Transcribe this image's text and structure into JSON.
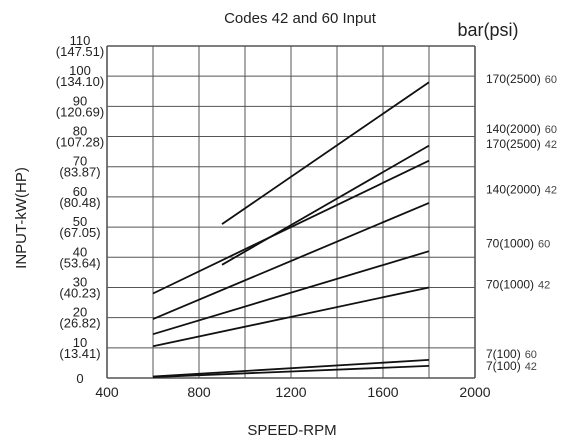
{
  "chart_data": {
    "type": "line",
    "title": "Codes 42 and 60 Input",
    "legend_title": "bar(psi)",
    "xlabel": "SPEED-RPM",
    "ylabel": "INPUT-kW(HP)",
    "xlim": [
      400,
      2000
    ],
    "ylim": [
      0,
      110
    ],
    "x_ticks": [
      "400",
      "800",
      "1200",
      "1600",
      "2000"
    ],
    "y_ticks": [
      {
        "value": 0,
        "kw": "0",
        "hp": ""
      },
      {
        "value": 10,
        "kw": "10",
        "hp": "(13.41)"
      },
      {
        "value": 20,
        "kw": "20",
        "hp": "(26.82)"
      },
      {
        "value": 30,
        "kw": "30",
        "hp": "(40.23)"
      },
      {
        "value": 40,
        "kw": "40",
        "hp": "(53.64)"
      },
      {
        "value": 50,
        "kw": "50",
        "hp": "(67.05)"
      },
      {
        "value": 60,
        "kw": "60",
        "hp": "(80.48)"
      },
      {
        "value": 70,
        "kw": "70",
        "hp": "(83.87)"
      },
      {
        "value": 80,
        "kw": "80",
        "hp": "(107.28)"
      },
      {
        "value": 90,
        "kw": "90",
        "hp": "(120.69)"
      },
      {
        "value": 100,
        "kw": "100",
        "hp": "(134.10)"
      },
      {
        "value": 110,
        "kw": "110",
        "hp": "(147.51)"
      }
    ],
    "grid": true,
    "series": [
      {
        "name": "170(2500) 60",
        "pressure": "170(2500)",
        "code": "60",
        "x": [
          900,
          1800
        ],
        "y": [
          51,
          98
        ]
      },
      {
        "name": "140(2000) 60",
        "pressure": "140(2000)",
        "code": "60",
        "x": [
          900,
          1800
        ],
        "y": [
          37.5,
          77
        ]
      },
      {
        "name": "170(2500) 42",
        "pressure": "170(2500)",
        "code": "42",
        "x": [
          600,
          1800
        ],
        "y": [
          28,
          72
        ]
      },
      {
        "name": "140(2000) 42",
        "pressure": "140(2000)",
        "code": "42",
        "x": [
          600,
          1800
        ],
        "y": [
          19.5,
          58
        ]
      },
      {
        "name": "70(1000) 60",
        "pressure": "70(1000)",
        "code": "60",
        "x": [
          600,
          1800
        ],
        "y": [
          14.5,
          42
        ]
      },
      {
        "name": "70(1000) 42",
        "pressure": "70(1000)",
        "code": "42",
        "x": [
          600,
          1800
        ],
        "y": [
          10.5,
          30
        ]
      },
      {
        "name": "7(100) 60",
        "pressure": "7(100)",
        "code": "60",
        "x": [
          600,
          1800
        ],
        "y": [
          0.5,
          6
        ]
      },
      {
        "name": "7(100) 42",
        "pressure": "7(100)",
        "code": "42",
        "x": [
          600,
          1800
        ],
        "y": [
          0.3,
          4
        ]
      }
    ],
    "label_y_values": [
      99,
      82.5,
      77.5,
      62.5,
      44.5,
      31,
      8,
      4
    ]
  }
}
